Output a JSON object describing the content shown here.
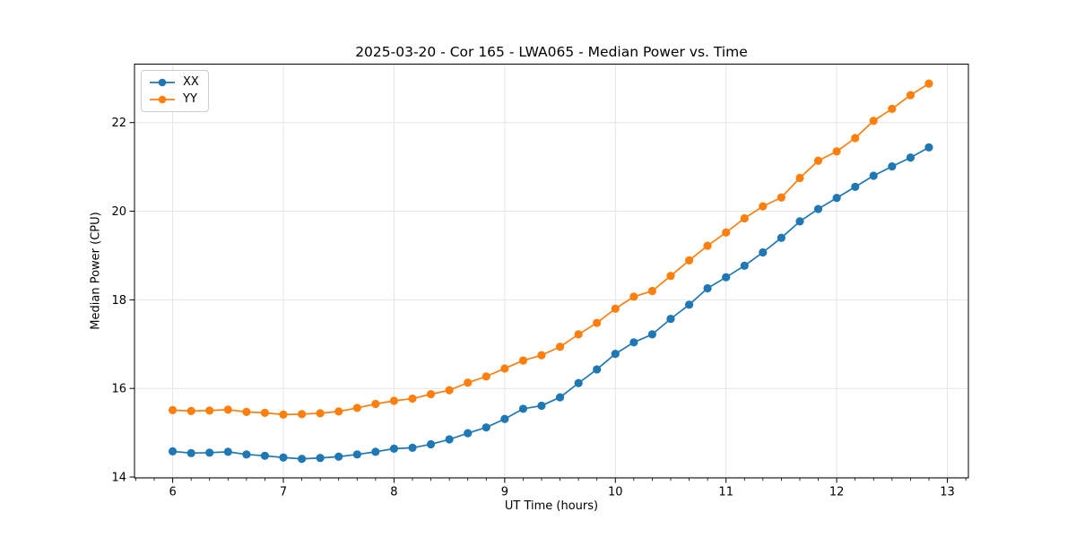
{
  "chart_data": {
    "type": "line",
    "title": "2025-03-20 - Cor 165 - LWA065 - Median Power vs. Time",
    "xlabel": "UT Time (hours)",
    "ylabel": "Median Power (CPU)",
    "xlim": [
      5.655,
      13.19
    ],
    "ylim": [
      13.98,
      23.32
    ],
    "xticks": [
      6,
      7,
      8,
      9,
      10,
      11,
      12,
      13
    ],
    "yticks": [
      14,
      16,
      18,
      20,
      22
    ],
    "x_minor_divisions": 6,
    "grid": true,
    "grid_color": "#e5e5e5",
    "spine_color": "#000000",
    "legend_position": "upper-left",
    "x": [
      6.0,
      6.167,
      6.333,
      6.5,
      6.667,
      6.833,
      7.0,
      7.167,
      7.333,
      7.5,
      7.667,
      7.833,
      8.0,
      8.167,
      8.333,
      8.5,
      8.667,
      8.833,
      9.0,
      9.167,
      9.333,
      9.5,
      9.667,
      9.833,
      10.0,
      10.167,
      10.333,
      10.5,
      10.667,
      10.833,
      11.0,
      11.167,
      11.333,
      11.5,
      11.667,
      11.833,
      12.0,
      12.167,
      12.333,
      12.5,
      12.667,
      12.833
    ],
    "series": [
      {
        "name": "XX",
        "color": "#1f77b4",
        "values": [
          14.58,
          14.54,
          14.55,
          14.57,
          14.51,
          14.48,
          14.44,
          14.41,
          14.43,
          14.46,
          14.51,
          14.57,
          14.64,
          14.66,
          14.74,
          14.85,
          14.99,
          15.12,
          15.31,
          15.54,
          15.61,
          15.8,
          16.12,
          16.43,
          16.78,
          17.04,
          17.22,
          17.57,
          17.89,
          18.26,
          18.51,
          18.77,
          19.07,
          19.4,
          19.77,
          20.05,
          20.3,
          20.55,
          20.8,
          21.01,
          21.21,
          21.44
        ]
      },
      {
        "name": "YY",
        "color": "#ff7f0e",
        "values": [
          15.51,
          15.49,
          15.5,
          15.52,
          15.47,
          15.45,
          15.41,
          15.42,
          15.44,
          15.48,
          15.56,
          15.65,
          15.72,
          15.77,
          15.87,
          15.96,
          16.13,
          16.27,
          16.45,
          16.63,
          16.75,
          16.94,
          17.22,
          17.48,
          17.8,
          18.07,
          18.2,
          18.54,
          18.89,
          19.22,
          19.52,
          19.84,
          20.11,
          20.31,
          20.75,
          21.14,
          21.35,
          21.65,
          22.04,
          22.31,
          22.62,
          22.88
        ]
      }
    ]
  }
}
